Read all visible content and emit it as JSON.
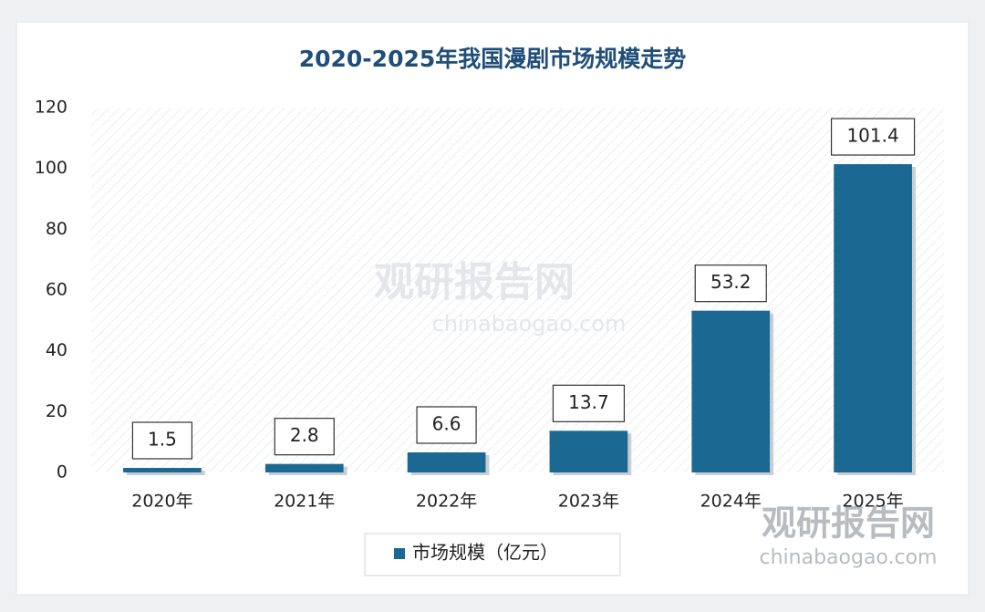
{
  "chart_data": {
    "type": "bar",
    "title": "2020-2025年我国漫剧市场规模走势",
    "categories": [
      "2020年",
      "2021年",
      "2022年",
      "2023年",
      "2024年",
      "2025年"
    ],
    "series": [
      {
        "name": "市场规模（亿元）",
        "color": "#1b6993",
        "values": [
          1.5,
          2.8,
          6.6,
          13.7,
          53.2,
          101.4
        ]
      }
    ],
    "ylim": [
      0,
      120
    ],
    "yticks": [
      0,
      20,
      40,
      60,
      80,
      100,
      120
    ],
    "watermark": [
      "观研报告网",
      "chinabaogao.com"
    ]
  }
}
